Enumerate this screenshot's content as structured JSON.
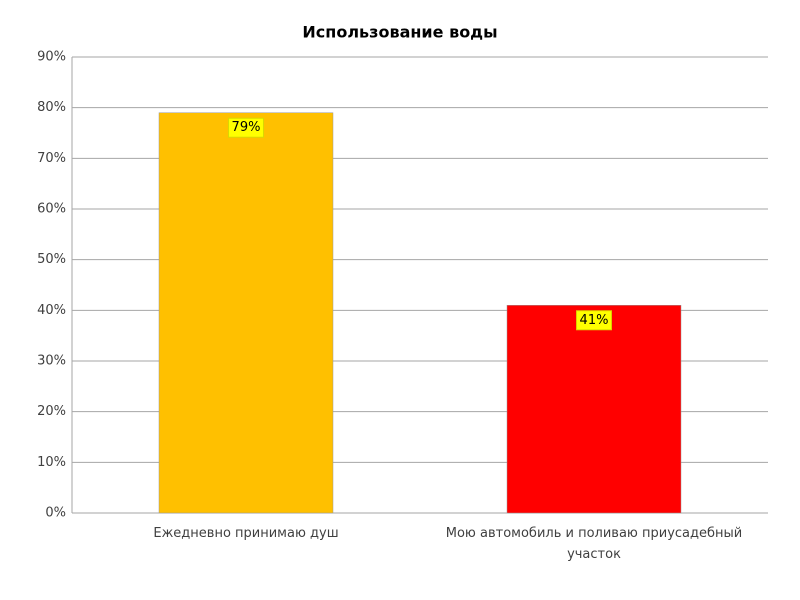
{
  "chart_data": {
    "type": "bar",
    "title": "Использование воды",
    "categories": [
      "Ежедневно принимаю душ",
      "Мою автомобиль и поливаю приусадебный участок"
    ],
    "values": [
      79,
      41
    ],
    "value_labels": [
      "79%",
      "41%"
    ],
    "colors": [
      "#ffc000",
      "#ff0000"
    ],
    "ylim": [
      0,
      90
    ],
    "yticks": [
      {
        "value": 0,
        "label": "0%"
      },
      {
        "value": 10,
        "label": "10%"
      },
      {
        "value": 20,
        "label": "20%"
      },
      {
        "value": 30,
        "label": "30%"
      },
      {
        "value": 40,
        "label": "40%"
      },
      {
        "value": 50,
        "label": "50%"
      },
      {
        "value": 60,
        "label": "60%"
      },
      {
        "value": 70,
        "label": "70%"
      },
      {
        "value": 80,
        "label": "80%"
      },
      {
        "value": 90,
        "label": "90%"
      }
    ],
    "grid": true
  }
}
